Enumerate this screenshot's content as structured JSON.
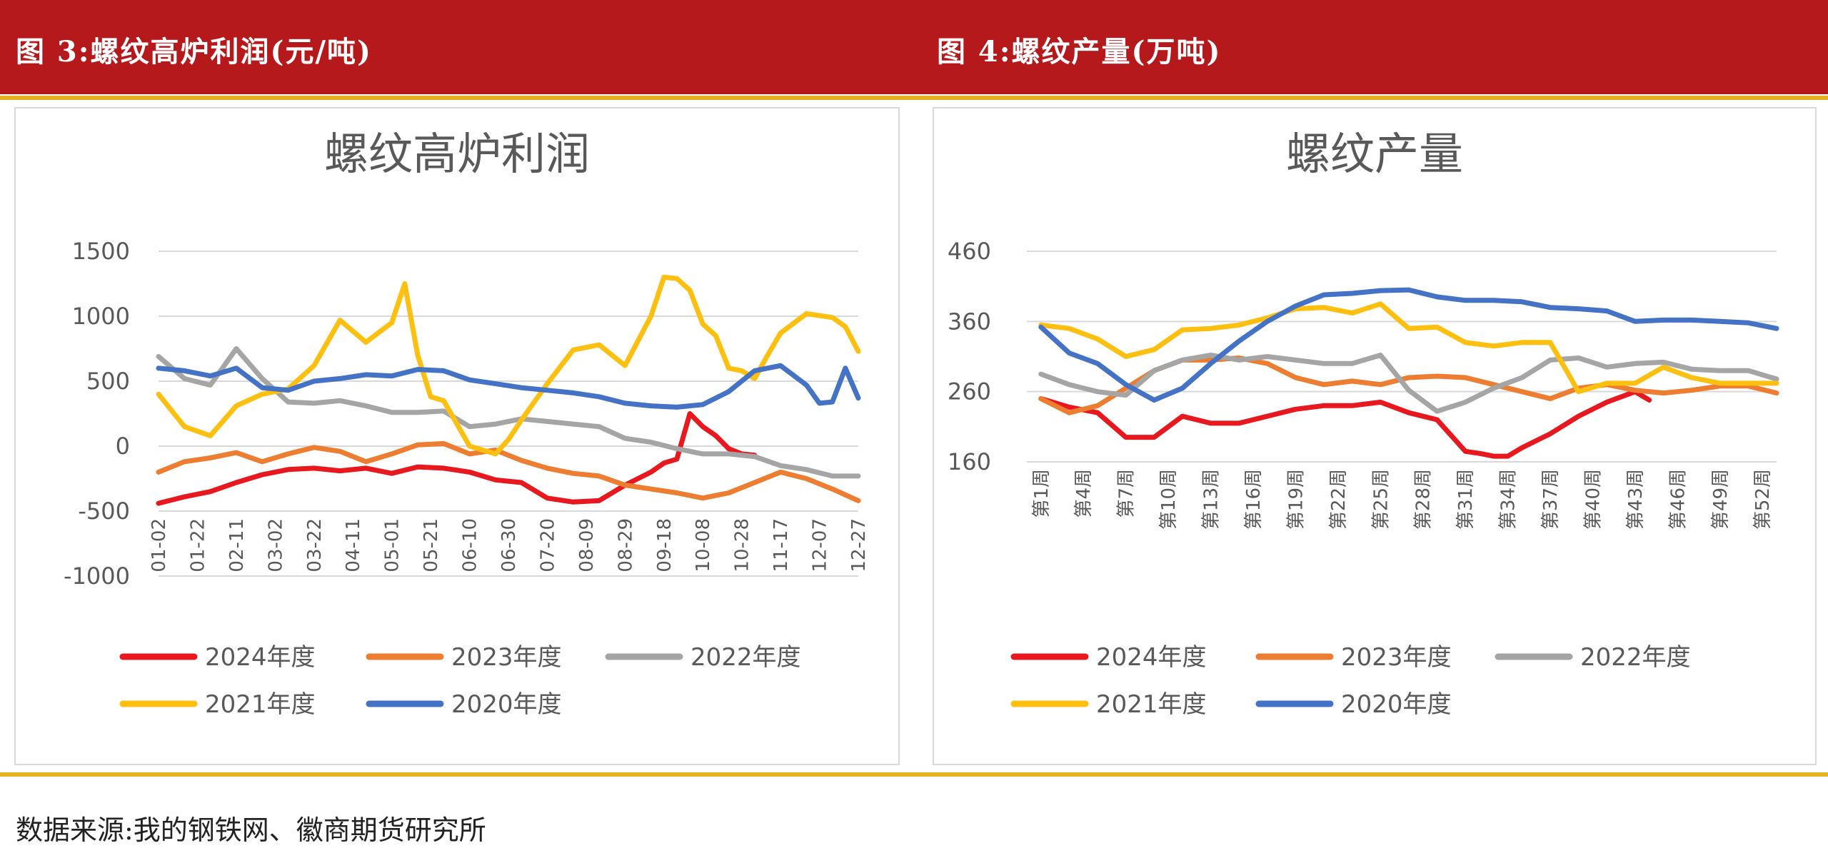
{
  "figures": {
    "fig3_label": "图 3:螺纹高炉利润(元/吨)",
    "fig4_label": "图 4:螺纹产量(万吨)"
  },
  "source": "数据来源:我的钢铁网、徽商期货研究所",
  "colors": {
    "2024": "#e8191e",
    "2023": "#ed7d31",
    "2022": "#a5a5a5",
    "2021": "#fdc010",
    "2020": "#4472c4"
  },
  "chart_data": [
    {
      "type": "line",
      "title": "螺纹高炉利润",
      "ylim": [
        -1000,
        1500
      ],
      "yticks": [
        -1000,
        -500,
        0,
        500,
        1000,
        1500
      ],
      "ytick_labels": [
        "-1000",
        "-500",
        "0",
        "500",
        "1000",
        "1500"
      ],
      "xlabel": "",
      "ylabel": "",
      "grid": true,
      "x_count": 52,
      "x_tick_labels": [
        "01-02",
        "01-22",
        "02-11",
        "03-02",
        "03-22",
        "04-11",
        "05-01",
        "05-21",
        "06-10",
        "06-30",
        "07-20",
        "08-09",
        "08-29",
        "09-18",
        "10-08",
        "10-28",
        "11-17",
        "12-07",
        "12-27"
      ],
      "x_tick_index": [
        0,
        3,
        6,
        9,
        12,
        15,
        18,
        21,
        24,
        27,
        30,
        33,
        36,
        39,
        42,
        45,
        48,
        51,
        54
      ],
      "series": [
        {
          "name": "2024年度",
          "x": [
            0,
            2,
            4,
            6,
            8,
            10,
            12,
            14,
            16,
            18,
            20,
            22,
            24,
            26,
            28,
            30,
            32,
            34,
            36,
            38,
            39,
            40,
            41,
            42,
            43,
            44,
            45,
            46
          ],
          "values": [
            -440,
            -390,
            -350,
            -280,
            -220,
            -180,
            -170,
            -190,
            -170,
            -210,
            -160,
            -170,
            -200,
            -260,
            -280,
            -400,
            -430,
            -420,
            -300,
            -200,
            -130,
            -100,
            250,
            150,
            80,
            -20,
            -60,
            -70
          ]
        },
        {
          "name": "2023年度",
          "x": [
            0,
            2,
            4,
            6,
            8,
            10,
            12,
            14,
            16,
            18,
            20,
            22,
            24,
            26,
            28,
            30,
            32,
            34,
            36,
            38,
            40,
            42,
            44,
            46,
            48,
            50,
            52,
            54
          ],
          "values": [
            -200,
            -120,
            -90,
            -50,
            -120,
            -60,
            -10,
            -40,
            -120,
            -60,
            10,
            20,
            -60,
            -30,
            -110,
            -170,
            -210,
            -230,
            -300,
            -330,
            -360,
            -400,
            -360,
            -280,
            -200,
            -250,
            -330,
            -420
          ]
        },
        {
          "name": "2022年度",
          "x": [
            0,
            2,
            4,
            6,
            8,
            10,
            12,
            14,
            16,
            18,
            20,
            22,
            24,
            26,
            28,
            30,
            32,
            34,
            36,
            38,
            40,
            42,
            44,
            46,
            48,
            50,
            52,
            54
          ],
          "values": [
            690,
            520,
            470,
            750,
            520,
            340,
            330,
            350,
            310,
            260,
            260,
            270,
            150,
            170,
            210,
            190,
            170,
            150,
            60,
            30,
            -20,
            -60,
            -60,
            -80,
            -150,
            -180,
            -230,
            -230
          ]
        },
        {
          "name": "2021年度",
          "x": [
            0,
            2,
            4,
            6,
            8,
            10,
            12,
            14,
            16,
            18,
            19,
            20,
            21,
            22,
            24,
            26,
            27,
            28,
            30,
            32,
            34,
            36,
            38,
            39,
            40,
            41,
            42,
            43,
            44,
            45,
            46,
            47,
            48,
            50,
            52,
            53,
            54
          ],
          "values": [
            400,
            150,
            80,
            310,
            400,
            440,
            620,
            970,
            800,
            950,
            1250,
            700,
            380,
            350,
            0,
            -60,
            50,
            200,
            480,
            740,
            780,
            620,
            1000,
            1300,
            1290,
            1200,
            940,
            850,
            600,
            580,
            520,
            700,
            870,
            1020,
            990,
            920,
            730
          ]
        },
        {
          "name": "2020年度",
          "x": [
            0,
            2,
            4,
            6,
            8,
            10,
            12,
            14,
            16,
            18,
            20,
            22,
            24,
            26,
            28,
            30,
            32,
            34,
            36,
            38,
            40,
            42,
            44,
            46,
            48,
            50,
            51,
            52,
            53,
            54
          ],
          "values": [
            600,
            580,
            540,
            600,
            450,
            430,
            500,
            520,
            550,
            540,
            590,
            580,
            510,
            480,
            450,
            430,
            410,
            380,
            330,
            310,
            300,
            320,
            420,
            580,
            620,
            470,
            330,
            340,
            600,
            370
          ]
        }
      ],
      "legend": [
        "2024年度",
        "2023年度",
        "2022年度",
        "2021年度",
        "2020年度"
      ],
      "legend_placement": "bottom"
    },
    {
      "type": "line",
      "title": "螺纹产量",
      "ylim": [
        160,
        460
      ],
      "yticks": [
        160,
        260,
        360,
        460
      ],
      "ytick_labels": [
        "160",
        "260",
        "360",
        "460"
      ],
      "xlabel": "",
      "ylabel": "",
      "grid": true,
      "x_count": 53,
      "x_tick_labels": [
        "第1周",
        "第4周",
        "第7周",
        "第10周",
        "第13周",
        "第16周",
        "第19周",
        "第22周",
        "第25周",
        "第28周",
        "第31周",
        "第34周",
        "第37周",
        "第40周",
        "第43周",
        "第46周",
        "第49周",
        "第52周"
      ],
      "x_tick_index": [
        1,
        4,
        7,
        10,
        13,
        16,
        19,
        22,
        25,
        28,
        31,
        34,
        37,
        40,
        43,
        46,
        49,
        52
      ],
      "series": [
        {
          "name": "2024年度",
          "x": [
            1,
            3,
            5,
            7,
            9,
            11,
            13,
            15,
            17,
            19,
            21,
            23,
            25,
            27,
            29,
            31,
            32,
            33,
            34,
            35,
            37,
            39,
            41,
            43,
            44
          ],
          "values": [
            250,
            238,
            230,
            195,
            195,
            225,
            215,
            215,
            225,
            235,
            240,
            240,
            245,
            230,
            220,
            175,
            172,
            168,
            168,
            180,
            200,
            225,
            245,
            260,
            248
          ]
        },
        {
          "name": "2023年度",
          "x": [
            1,
            3,
            5,
            7,
            9,
            11,
            13,
            15,
            17,
            19,
            21,
            23,
            25,
            27,
            29,
            31,
            33,
            35,
            37,
            39,
            41,
            43,
            45,
            47,
            49,
            51,
            53
          ],
          "values": [
            250,
            230,
            240,
            265,
            290,
            305,
            305,
            308,
            300,
            280,
            270,
            275,
            270,
            280,
            282,
            280,
            270,
            260,
            250,
            265,
            270,
            262,
            258,
            262,
            268,
            268,
            258
          ]
        },
        {
          "name": "2022年度",
          "x": [
            1,
            3,
            5,
            7,
            9,
            11,
            13,
            15,
            17,
            19,
            21,
            23,
            25,
            27,
            29,
            31,
            33,
            35,
            37,
            39,
            41,
            43,
            45,
            47,
            49,
            51,
            53
          ],
          "values": [
            285,
            270,
            260,
            255,
            290,
            305,
            312,
            305,
            310,
            305,
            300,
            300,
            312,
            262,
            232,
            245,
            265,
            280,
            305,
            308,
            295,
            300,
            302,
            292,
            290,
            290,
            278
          ]
        },
        {
          "name": "2021年度",
          "x": [
            1,
            3,
            5,
            7,
            9,
            11,
            13,
            15,
            17,
            19,
            21,
            23,
            25,
            27,
            29,
            31,
            33,
            35,
            37,
            39,
            41,
            43,
            45,
            47,
            49,
            51,
            53
          ],
          "values": [
            355,
            350,
            335,
            310,
            320,
            348,
            350,
            355,
            365,
            378,
            380,
            372,
            385,
            350,
            352,
            330,
            325,
            330,
            330,
            260,
            272,
            272,
            295,
            280,
            272,
            272,
            272
          ]
        },
        {
          "name": "2020年度",
          "x": [
            1,
            3,
            5,
            7,
            9,
            11,
            13,
            15,
            17,
            19,
            21,
            23,
            25,
            27,
            29,
            31,
            33,
            35,
            37,
            39,
            41,
            43,
            45,
            47,
            49,
            51,
            53
          ],
          "values": [
            352,
            315,
            300,
            270,
            248,
            265,
            300,
            332,
            360,
            382,
            398,
            400,
            404,
            405,
            395,
            390,
            390,
            388,
            380,
            378,
            375,
            360,
            362,
            362,
            360,
            358,
            350
          ]
        }
      ],
      "legend": [
        "2024年度",
        "2023年度",
        "2022年度",
        "2021年度",
        "2020年度"
      ],
      "legend_placement": "bottom"
    }
  ]
}
